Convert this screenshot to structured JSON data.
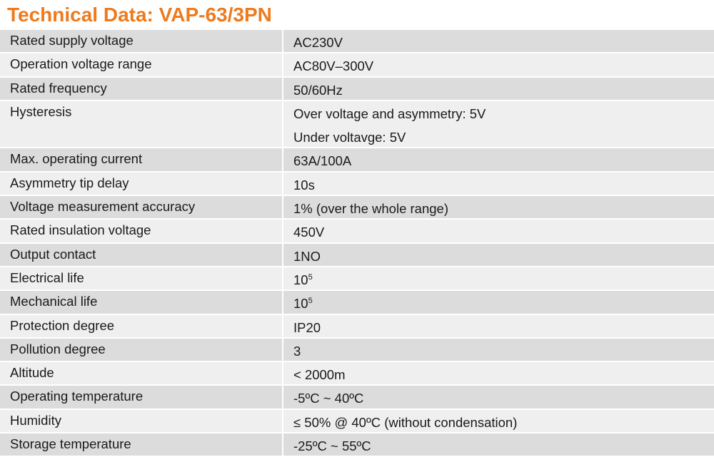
{
  "title": "Technical Data: VAP-63/3PN",
  "rows": [
    {
      "label": "Rated supply voltage",
      "value": "AC230V"
    },
    {
      "label": "Operation voltage range",
      "value": "AC80V–300V"
    },
    {
      "label": "Rated frequency",
      "value": "50/60Hz"
    },
    {
      "label": "Hysteresis",
      "value": "Over voltage and asymmetry: 5V",
      "value2": "Under voltavge: 5V"
    },
    {
      "label": "Max. operating current",
      "value": "63A/100A"
    },
    {
      "label": "Asymmetry tip delay",
      "value": "10s"
    },
    {
      "label": "Voltage measurement accuracy",
      "value": "1% (over the whole range)"
    },
    {
      "label": "Rated insulation voltage",
      "value": "450V"
    },
    {
      "label": "Output contact",
      "value": "1NO"
    },
    {
      "label": "Electrical life",
      "value_base": "10",
      "value_exp": "5"
    },
    {
      "label": "Mechanical life",
      "value_base": "10",
      "value_exp": "5"
    },
    {
      "label": "Protection degree",
      "value": "IP20"
    },
    {
      "label": "Pollution degree",
      "value": "3"
    },
    {
      "label": "Altitude",
      "value": "< 2000m"
    },
    {
      "label": "Operating temperature",
      "value": "-5ºC ~ 40ºC"
    },
    {
      "label": "Humidity",
      "value": "≤ 50% @ 40ºC (without condensation)"
    },
    {
      "label": "Storage temperature",
      "value": "-25ºC ~ 55ºC"
    }
  ]
}
